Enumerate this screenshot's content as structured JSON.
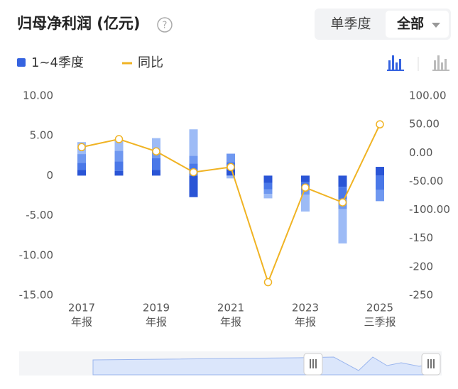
{
  "chart_data": {
    "type": "bar-line",
    "title": "归母净利润 (亿元)",
    "tabs": [
      "单季度",
      "全部"
    ],
    "categories": [
      "2017",
      null,
      "2019",
      null,
      "2021",
      null,
      "2023",
      null,
      "2025"
    ],
    "category_sublabels": [
      "年报",
      null,
      "年报",
      null,
      "年报",
      null,
      "年报",
      null,
      "三季报"
    ],
    "series": [
      {
        "name": "1~4季度",
        "type": "bar",
        "color": "#3563e0",
        "segment_colors": [
          "#2a55d6",
          "#4a78e8",
          "#6f98f0",
          "#9dbbf6"
        ],
        "values": [
          [
            0.7,
            0.9,
            1.1,
            1.5
          ],
          [
            0.6,
            1.2,
            1.3,
            1.4
          ],
          [
            0.7,
            1.5,
            1.0,
            1.5
          ],
          [
            -2.7,
            1.5,
            1.0,
            3.3
          ],
          [
            0.8,
            0.9,
            1.05,
            -0.35
          ],
          [
            -0.9,
            -0.8,
            -0.6,
            -0.55
          ],
          [
            -0.8,
            -1.0,
            -0.6,
            -2.1
          ],
          [
            -1.4,
            -1.5,
            -1.3,
            -4.3
          ],
          [
            1.1,
            -1.8,
            -1.4,
            null
          ]
        ]
      },
      {
        "name": "同比",
        "type": "line",
        "axis": "y2",
        "color": "#f0b323",
        "values": [
          10,
          24,
          2.5,
          -34,
          -25,
          -227,
          -61,
          -87,
          50
        ]
      }
    ],
    "ylim": [
      -15,
      10
    ],
    "yticks": [
      {
        "value": -15,
        "label": "-15.00"
      },
      {
        "value": -10,
        "label": "-10.00"
      },
      {
        "value": -5,
        "label": "-5.00"
      },
      0,
      {
        "value": 5,
        "label": "5.00"
      },
      {
        "value": 10,
        "label": "10.00"
      }
    ],
    "y2lim": [
      -250,
      100
    ],
    "y2ticks": [
      -250,
      -200,
      -150,
      {
        "value": -100,
        "label": "-100.00"
      },
      {
        "value": -50,
        "label": "-50.00"
      },
      {
        "value": 0,
        "label": "0.00"
      },
      {
        "value": 50,
        "label": "50.00"
      },
      {
        "value": 100,
        "label": "100.00"
      }
    ],
    "grid": false
  }
}
